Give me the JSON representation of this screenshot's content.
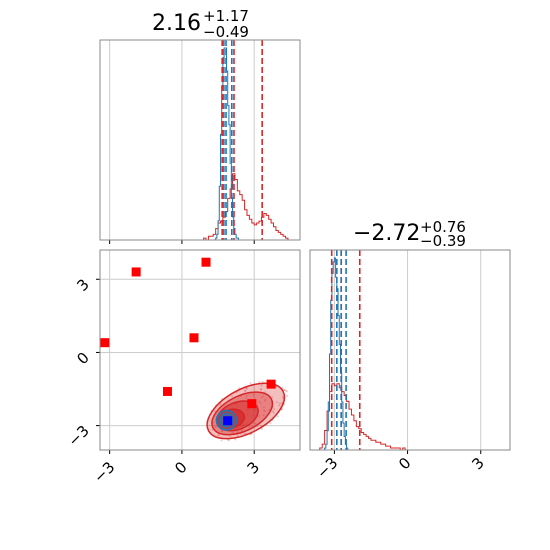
{
  "chart_data": {
    "type": "corner",
    "colors": {
      "red": "#d62728",
      "blue": "#1f77b4",
      "point_red": "#ff0000",
      "point_blue": "#0000ff",
      "grid": "#cccccc",
      "frame": "#888888"
    },
    "parameter_1": {
      "title": {
        "value": "2.16",
        "plus": "+1.17",
        "minus": "−0.49"
      },
      "xlim": [
        -3.4,
        4.9
      ],
      "ticks": [
        {
          "value": -3,
          "label": "−3"
        },
        {
          "value": 0,
          "label": "0"
        },
        {
          "value": 3,
          "label": "3"
        }
      ],
      "histogram_red": {
        "bin_start": 0.9,
        "bin_width": 0.1,
        "counts": [
          1,
          0,
          2,
          2,
          3,
          6,
          9,
          10,
          12,
          15,
          22,
          27,
          35,
          32,
          26,
          24,
          21,
          16,
          13,
          11,
          9,
          8,
          9,
          10,
          12,
          14,
          13,
          11,
          9,
          7,
          5,
          4,
          3,
          2,
          1
        ]
      },
      "histogram_blue": {
        "bin_start": 1.4,
        "bin_width": 0.05,
        "counts": [
          1,
          3,
          10,
          28,
          55,
          80,
          95,
          100,
          100,
          88,
          70,
          60,
          40,
          22,
          12,
          6,
          3,
          1,
          1
        ]
      },
      "quantiles_red": [
        1.67,
        2.16,
        3.33
      ],
      "quantiles_blue": [
        1.74,
        1.83,
        2.07
      ]
    },
    "parameter_2": {
      "title": {
        "value": "−2.72",
        "plus": "+0.76",
        "minus": "−0.39"
      },
      "xlim": [
        -4.0,
        4.2
      ],
      "ticks": [
        {
          "value": -3,
          "label": "−3"
        },
        {
          "value": 0,
          "label": "0"
        },
        {
          "value": 3,
          "label": "3"
        }
      ],
      "histogram_red": {
        "bin_start": -3.6,
        "bin_width": 0.1,
        "counts": [
          1,
          3,
          10,
          20,
          30,
          34,
          33,
          34,
          32,
          30,
          28,
          25,
          21,
          18,
          15,
          12,
          11,
          9,
          8,
          7,
          6,
          5,
          5,
          4,
          4,
          3,
          3,
          2,
          2,
          1,
          1,
          1,
          1,
          0,
          1
        ]
      },
      "histogram_blue": {
        "bin_start": -3.4,
        "bin_width": 0.05,
        "counts": [
          1,
          3,
          10,
          25,
          50,
          78,
          92,
          98,
          100,
          90,
          84,
          70,
          55,
          40,
          25,
          14,
          7,
          3,
          1
        ]
      },
      "quantiles_red": [
        -3.11,
        -2.72,
        -1.96
      ],
      "quantiles_blue": [
        -2.9,
        -2.72,
        -2.52
      ]
    },
    "joint": {
      "xlim": [
        -3.4,
        4.9
      ],
      "ylim": [
        -4.0,
        4.2
      ],
      "xticks": [
        {
          "value": -3,
          "label": "−3"
        },
        {
          "value": 0,
          "label": "0"
        },
        {
          "value": 3,
          "label": "3"
        }
      ],
      "yticks": [
        {
          "value": -3,
          "label": "−3"
        },
        {
          "value": 0,
          "label": "0"
        },
        {
          "value": 3,
          "label": "3"
        }
      ],
      "red_points": [
        {
          "x": -1.9,
          "y": 3.3
        },
        {
          "x": 1.0,
          "y": 3.7
        },
        {
          "x": -3.2,
          "y": 0.4
        },
        {
          "x": 0.5,
          "y": 0.6
        },
        {
          "x": -0.6,
          "y": -1.6
        },
        {
          "x": 3.7,
          "y": -1.3
        },
        {
          "x": 2.9,
          "y": -2.1
        }
      ],
      "blue_point": {
        "x": 1.9,
        "y": -2.8
      },
      "red_contours": [
        {
          "cx": 2.65,
          "cy": -2.4,
          "rx": 1.75,
          "ry": 0.9,
          "angle": 28,
          "fill": 0.3
        },
        {
          "cx": 2.5,
          "cy": -2.5,
          "rx": 1.35,
          "ry": 0.72,
          "angle": 26,
          "fill": 0.4
        },
        {
          "cx": 2.3,
          "cy": -2.6,
          "rx": 0.9,
          "ry": 0.55,
          "angle": 22,
          "fill": 0.55
        },
        {
          "cx": 2.05,
          "cy": -2.72,
          "rx": 0.55,
          "ry": 0.38,
          "angle": 15,
          "fill": 0.75
        }
      ],
      "blue_contours": [
        {
          "cx": 1.85,
          "cy": -2.78,
          "rx": 0.42,
          "ry": 0.4,
          "angle": 10
        },
        {
          "cx": 1.85,
          "cy": -2.78,
          "rx": 0.27,
          "ry": 0.26,
          "angle": 10
        }
      ]
    }
  }
}
